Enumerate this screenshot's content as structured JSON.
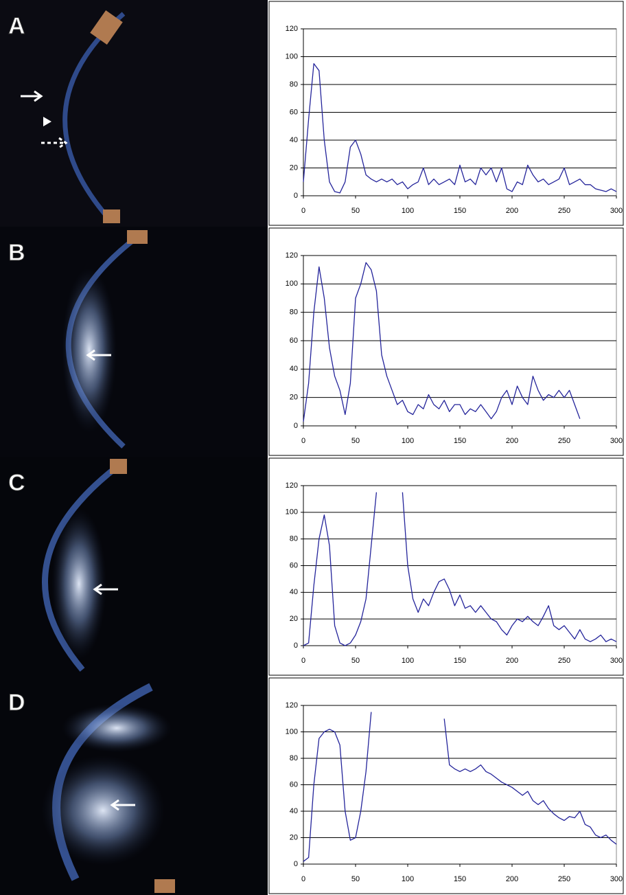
{
  "chart_data": [
    {
      "type": "line",
      "panel": "A",
      "color": "#23239a",
      "grid": true,
      "xlim": [
        0,
        300
      ],
      "xticks": [
        0,
        50,
        100,
        150,
        200,
        250,
        300
      ],
      "ylim": [
        0,
        120
      ],
      "yticks": [
        0,
        20,
        40,
        60,
        80,
        100,
        120
      ],
      "x": [
        0,
        5,
        10,
        15,
        20,
        25,
        30,
        35,
        40,
        45,
        50,
        55,
        60,
        65,
        70,
        75,
        80,
        85,
        90,
        95,
        100,
        105,
        110,
        115,
        120,
        125,
        130,
        135,
        140,
        145,
        150,
        155,
        160,
        165,
        170,
        175,
        180,
        185,
        190,
        195,
        200,
        205,
        210,
        215,
        220,
        225,
        230,
        235,
        240,
        245,
        250,
        255,
        260,
        265,
        270,
        275,
        280,
        285,
        290,
        295,
        300
      ],
      "values": [
        10,
        55,
        95,
        90,
        40,
        10,
        3,
        2,
        10,
        35,
        40,
        30,
        15,
        12,
        10,
        12,
        10,
        12,
        8,
        10,
        5,
        8,
        10,
        20,
        8,
        12,
        8,
        10,
        12,
        8,
        22,
        10,
        12,
        8,
        20,
        15,
        20,
        10,
        20,
        5,
        3,
        10,
        8,
        22,
        15,
        10,
        12,
        8,
        10,
        12,
        20,
        8,
        10,
        12,
        8,
        8,
        5,
        4,
        3,
        5,
        3
      ]
    },
    {
      "type": "line",
      "panel": "B",
      "color": "#23239a",
      "grid": true,
      "xlim": [
        0,
        300
      ],
      "xticks": [
        0,
        50,
        100,
        150,
        200,
        250,
        300
      ],
      "ylim": [
        0,
        120
      ],
      "yticks": [
        0,
        20,
        40,
        60,
        80,
        100,
        120
      ],
      "x": [
        0,
        5,
        10,
        15,
        20,
        25,
        30,
        35,
        40,
        45,
        50,
        55,
        60,
        65,
        70,
        75,
        80,
        85,
        90,
        95,
        100,
        105,
        110,
        115,
        120,
        125,
        130,
        135,
        140,
        145,
        150,
        155,
        160,
        165,
        170,
        175,
        180,
        185,
        190,
        195,
        200,
        205,
        210,
        215,
        220,
        225,
        230,
        235,
        240,
        245,
        250,
        255,
        260,
        265
      ],
      "values": [
        3,
        30,
        80,
        112,
        90,
        55,
        35,
        25,
        8,
        30,
        90,
        100,
        115,
        110,
        95,
        50,
        35,
        25,
        15,
        18,
        10,
        8,
        15,
        12,
        22,
        15,
        12,
        18,
        10,
        15,
        15,
        8,
        12,
        10,
        15,
        10,
        5,
        10,
        20,
        25,
        15,
        28,
        20,
        15,
        35,
        25,
        18,
        22,
        20,
        25,
        20,
        25,
        15,
        5
      ]
    },
    {
      "type": "line",
      "panel": "C",
      "color": "#23239a",
      "grid": true,
      "xlim": [
        0,
        300
      ],
      "xticks": [
        0,
        50,
        100,
        150,
        200,
        250,
        300
      ],
      "ylim": [
        0,
        120
      ],
      "yticks": [
        0,
        20,
        40,
        60,
        80,
        100,
        120
      ],
      "x": [
        0,
        5,
        10,
        15,
        20,
        25,
        30,
        35,
        40,
        45,
        50,
        55,
        60,
        65,
        70,
        75,
        80,
        85,
        90,
        95,
        100,
        105,
        110,
        115,
        120,
        125,
        130,
        135,
        140,
        145,
        150,
        155,
        160,
        165,
        170,
        175,
        180,
        185,
        190,
        195,
        200,
        205,
        210,
        215,
        220,
        225,
        230,
        235,
        240,
        245,
        250,
        255,
        260,
        265,
        270,
        275,
        280,
        285,
        290,
        295,
        300
      ],
      "values": [
        0,
        2,
        45,
        80,
        98,
        75,
        15,
        2,
        0,
        2,
        8,
        18,
        35,
        75,
        115,
        null,
        null,
        null,
        null,
        115,
        60,
        35,
        25,
        35,
        30,
        40,
        48,
        50,
        42,
        30,
        38,
        28,
        30,
        25,
        30,
        25,
        20,
        18,
        12,
        8,
        15,
        20,
        18,
        22,
        18,
        15,
        22,
        30,
        15,
        12,
        15,
        10,
        5,
        12,
        5,
        3,
        5,
        8,
        3,
        5,
        3
      ]
    },
    {
      "type": "line",
      "panel": "D",
      "color": "#23239a",
      "grid": true,
      "xlim": [
        0,
        300
      ],
      "xticks": [
        0,
        50,
        100,
        150,
        200,
        250,
        300
      ],
      "ylim": [
        0,
        120
      ],
      "yticks": [
        0,
        20,
        40,
        60,
        80,
        100,
        120
      ],
      "x": [
        0,
        5,
        10,
        15,
        20,
        25,
        30,
        35,
        40,
        45,
        50,
        55,
        60,
        65,
        70,
        75,
        80,
        85,
        90,
        95,
        100,
        105,
        110,
        115,
        120,
        125,
        130,
        135,
        140,
        145,
        150,
        155,
        160,
        165,
        170,
        175,
        180,
        185,
        190,
        195,
        200,
        205,
        210,
        215,
        220,
        225,
        230,
        235,
        240,
        245,
        250,
        255,
        260,
        265,
        270,
        275,
        280,
        285,
        290,
        295,
        300
      ],
      "values": [
        2,
        5,
        60,
        95,
        100,
        102,
        100,
        90,
        40,
        18,
        20,
        40,
        70,
        115,
        null,
        null,
        null,
        null,
        null,
        null,
        null,
        null,
        null,
        null,
        null,
        null,
        null,
        110,
        75,
        72,
        70,
        72,
        70,
        72,
        75,
        70,
        68,
        65,
        62,
        60,
        58,
        55,
        52,
        55,
        48,
        45,
        48,
        42,
        38,
        35,
        33,
        36,
        35,
        40,
        30,
        28,
        22,
        20,
        22,
        18,
        15
      ]
    }
  ]
}
